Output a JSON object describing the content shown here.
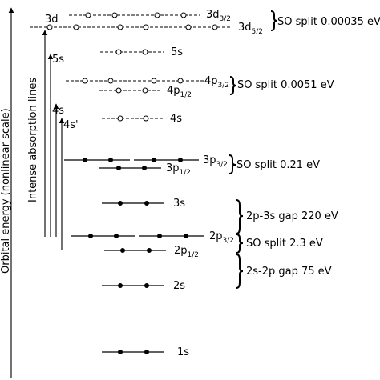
{
  "axis": {
    "ylabel": "Orbital energy (nonlinear scale)",
    "absorption_label": "Intense absorption lines"
  },
  "levels": {
    "1s": "1s",
    "2s": "2s",
    "2p12": "2p",
    "2p32": "2p",
    "3s": "3s",
    "3p12": "3p",
    "3p32": "3p",
    "4s": "4s",
    "4p12": "4p",
    "4p32": "4p",
    "5s": "5s",
    "3d52": "3d",
    "3d32": "3d",
    "sub12": "1/2",
    "sub32": "3/2",
    "sub52": "5/2"
  },
  "transitions": {
    "t3d": "3d",
    "t5s": "5s",
    "t4s": "4s",
    "t4sprime": "4s'"
  },
  "annotations": {
    "so_3d": "SO split 0.00035 eV",
    "so_4p": "SO split 0.0051 eV",
    "so_3p": "SO split 0.21 eV",
    "gap_2p3s": "2p-3s gap 220 eV",
    "so_2p": "SO split 2.3 eV",
    "gap_2s2p": "2s-2p gap 75 eV"
  }
}
